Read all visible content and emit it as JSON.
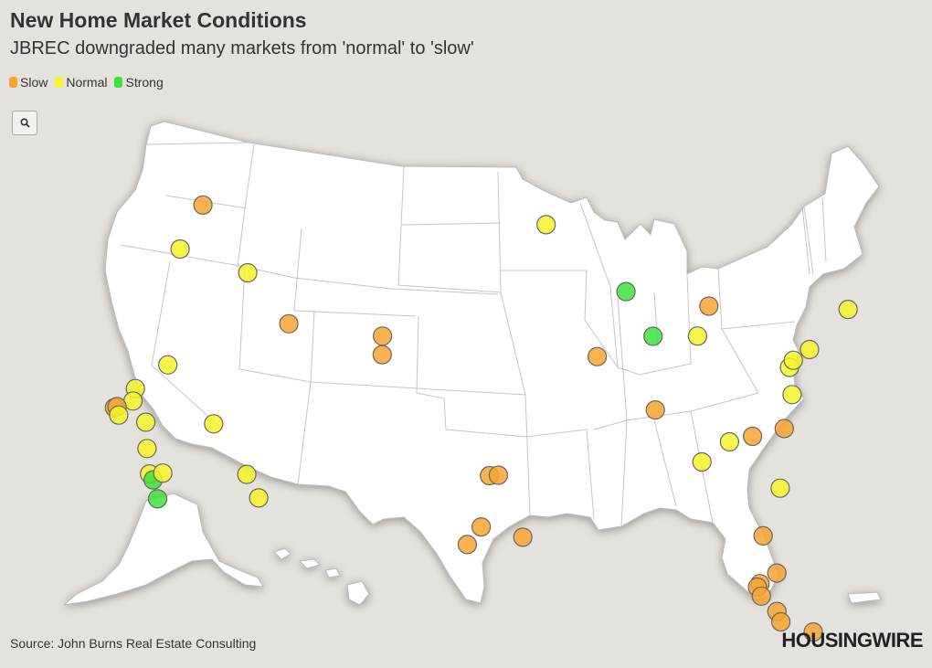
{
  "header": {
    "title": "New Home Market Conditions",
    "subtitle": "JBREC downgraded many markets from 'normal' to 'slow'"
  },
  "legend": [
    {
      "label": "Slow",
      "color": "#f7a531"
    },
    {
      "label": "Normal",
      "color": "#f4f52a"
    },
    {
      "label": "Strong",
      "color": "#3ee23e"
    }
  ],
  "toolbar": {
    "zoom_icon": "search-icon"
  },
  "footer": {
    "source": "Source: John Burns Real Estate Consulting",
    "brand": "HOUSINGWIRE"
  },
  "markets": [
    {
      "status": "slow",
      "lon": -122.33,
      "lat": 47.61
    },
    {
      "status": "normal",
      "lon": -122.68,
      "lat": 45.52
    },
    {
      "status": "normal",
      "lon": -116.2,
      "lat": 43.62
    },
    {
      "status": "normal",
      "lon": -119.81,
      "lat": 39.53
    },
    {
      "status": "normal",
      "lon": -121.49,
      "lat": 38.58
    },
    {
      "status": "normal",
      "lon": -121.29,
      "lat": 37.95
    },
    {
      "status": "slow",
      "lon": -122.42,
      "lat": 37.77
    },
    {
      "status": "slow",
      "lon": -122.27,
      "lat": 37.8
    },
    {
      "status": "normal",
      "lon": -121.89,
      "lat": 37.34
    },
    {
      "status": "normal",
      "lon": -119.79,
      "lat": 36.74
    },
    {
      "status": "normal",
      "lon": -119.02,
      "lat": 35.37
    },
    {
      "status": "normal",
      "lon": -118.24,
      "lat": 34.05
    },
    {
      "status": "strong",
      "lon": -117.87,
      "lat": 33.72
    },
    {
      "status": "normal",
      "lon": -117.4,
      "lat": 34.0
    },
    {
      "status": "strong",
      "lon": -117.16,
      "lat": 32.72
    },
    {
      "status": "normal",
      "lon": -115.14,
      "lat": 36.17
    },
    {
      "status": "normal",
      "lon": -112.07,
      "lat": 33.45
    },
    {
      "status": "normal",
      "lon": -110.97,
      "lat": 32.22
    },
    {
      "status": "slow",
      "lon": -111.89,
      "lat": 40.76
    },
    {
      "status": "slow",
      "lon": -104.99,
      "lat": 39.74
    },
    {
      "status": "slow",
      "lon": -104.82,
      "lat": 38.83
    },
    {
      "status": "normal",
      "lon": -93.27,
      "lat": 44.98
    },
    {
      "status": "slow",
      "lon": -97.33,
      "lat": 32.76
    },
    {
      "status": "slow",
      "lon": -96.8,
      "lat": 32.78
    },
    {
      "status": "slow",
      "lon": -97.74,
      "lat": 30.27
    },
    {
      "status": "slow",
      "lon": -98.49,
      "lat": 29.42
    },
    {
      "status": "slow",
      "lon": -95.37,
      "lat": 29.76
    },
    {
      "status": "slow",
      "lon": -90.2,
      "lat": 38.63
    },
    {
      "status": "strong",
      "lon": -87.63,
      "lat": 41.88
    },
    {
      "status": "strong",
      "lon": -86.16,
      "lat": 39.77
    },
    {
      "status": "normal",
      "lon": -83.0,
      "lat": 39.96
    },
    {
      "status": "slow",
      "lon": -81.69,
      "lat": 41.5
    },
    {
      "status": "slow",
      "lon": -86.78,
      "lat": 36.16
    },
    {
      "status": "normal",
      "lon": -84.39,
      "lat": 33.75
    },
    {
      "status": "normal",
      "lon": -82.4,
      "lat": 34.85
    },
    {
      "status": "slow",
      "lon": -80.84,
      "lat": 35.23
    },
    {
      "status": "slow",
      "lon": -78.64,
      "lat": 35.78
    },
    {
      "status": "normal",
      "lon": -79.93,
      "lat": 32.78
    },
    {
      "status": "normal",
      "lon": -77.44,
      "lat": 37.54
    },
    {
      "status": "normal",
      "lon": -77.04,
      "lat": 38.9
    },
    {
      "status": "normal",
      "lon": -76.61,
      "lat": 39.29
    },
    {
      "status": "normal",
      "lon": -75.17,
      "lat": 39.95
    },
    {
      "status": "normal",
      "lon": -71.06,
      "lat": 42.36
    },
    {
      "status": "slow",
      "lon": -81.66,
      "lat": 30.33
    },
    {
      "status": "slow",
      "lon": -81.38,
      "lat": 28.54
    },
    {
      "status": "slow",
      "lon": -82.46,
      "lat": 27.95
    },
    {
      "status": "slow",
      "lon": -82.64,
      "lat": 27.77
    },
    {
      "status": "slow",
      "lon": -82.53,
      "lat": 27.34
    },
    {
      "status": "slow",
      "lon": -81.87,
      "lat": 26.64
    },
    {
      "status": "slow",
      "lon": -81.79,
      "lat": 26.14
    },
    {
      "status": "slow",
      "lon": -80.19,
      "lat": 25.76
    }
  ]
}
